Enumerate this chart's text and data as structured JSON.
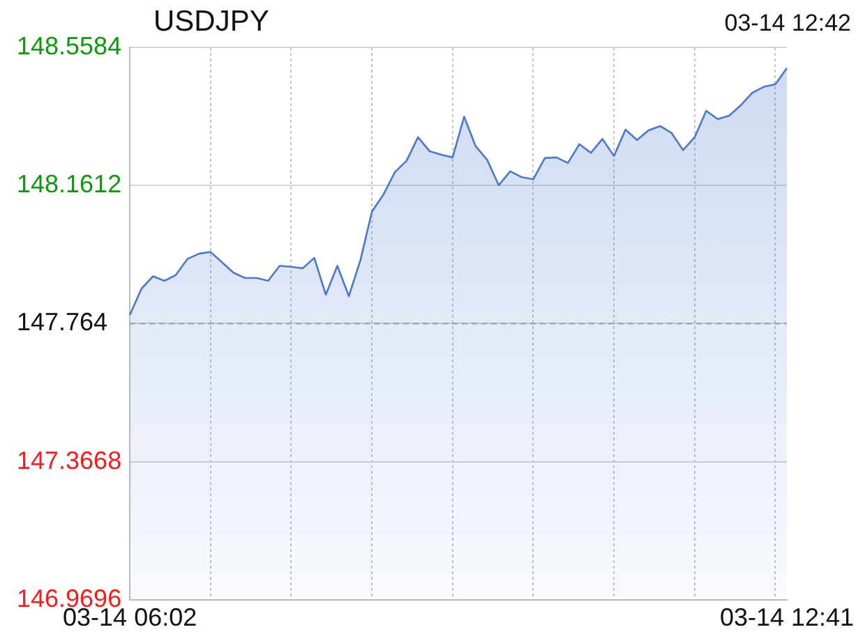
{
  "chart_data": {
    "type": "area",
    "title": "USDJPY",
    "subtitle": "03-14 12:42",
    "categories": [
      "03-14 06:02",
      null,
      null,
      null,
      null,
      null,
      null,
      null,
      null,
      null,
      null,
      null,
      null,
      null,
      null,
      null,
      null,
      null,
      null,
      null,
      null,
      null,
      null,
      null,
      null,
      null,
      null,
      null,
      null,
      null,
      null,
      null,
      null,
      null,
      null,
      null,
      null,
      null,
      null,
      null,
      null,
      null,
      null,
      null,
      null,
      null,
      null,
      null,
      null,
      null,
      null,
      null,
      null,
      null,
      null,
      null,
      null,
      "03-14 12:41"
    ],
    "series": [
      {
        "color": "#4a78d0",
        "values": [
          147.789,
          147.864,
          147.9,
          147.887,
          147.904,
          147.95,
          147.965,
          147.97,
          147.94,
          147.91,
          147.895,
          147.895,
          147.887,
          147.93,
          147.927,
          147.923,
          147.953,
          147.847,
          147.93,
          147.843,
          147.946,
          148.086,
          148.135,
          148.2,
          148.232,
          148.3,
          148.26,
          148.25,
          148.242,
          148.359,
          148.274,
          148.235,
          148.162,
          148.202,
          148.185,
          148.179,
          148.24,
          148.242,
          148.226,
          148.28,
          148.255,
          148.295,
          148.246,
          148.322,
          148.292,
          148.32,
          148.332,
          148.312,
          148.263,
          148.3,
          148.376,
          148.352,
          148.362,
          148.392,
          148.428,
          148.445,
          148.452,
          148.499
        ]
      }
    ],
    "ylim": [
      146.9696,
      148.5584
    ],
    "yticks": [
      146.9696,
      147.3668,
      147.764,
      148.1612,
      148.5584
    ],
    "ref_lines": [
      {
        "axis": "y",
        "value": 147.764,
        "color": "#9a9aa8",
        "line_style": "dashed"
      }
    ],
    "grid": true,
    "legend": false,
    "marker": "none",
    "line_style": "solid"
  }
}
